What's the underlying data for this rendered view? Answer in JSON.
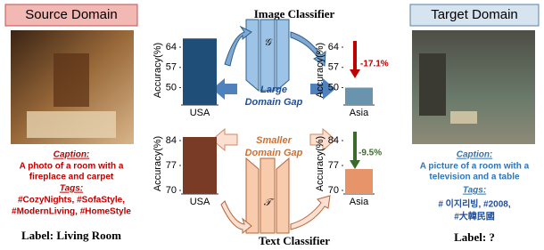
{
  "source": {
    "header": "Source Domain",
    "caption_label": "Caption:",
    "caption": [
      "A photo of a room with a",
      "fireplace and carpet"
    ],
    "tags_label": "Tags:",
    "tags": [
      "#CozyNights, #SofaStyle,",
      "#ModernLiving, #HomeStyle"
    ],
    "label": "Label: Living Room"
  },
  "target": {
    "header": "Target Domain",
    "caption_label": "Caption:",
    "caption": [
      "A picture of a room with a",
      "television and a table"
    ],
    "tags_label": "Tags:",
    "tags": [
      "# 이지리빙, #2008,",
      "#大韓民國"
    ],
    "label": "Label: ?"
  },
  "image_classifier": {
    "title": "Image Classifier",
    "symbol": "𝒢"
  },
  "text_classifier": {
    "title": "Text Classifier",
    "symbol": "𝒯"
  },
  "large_gap": [
    "Large",
    "Domain Gap"
  ],
  "small_gap": [
    "Smaller",
    "Domain Gap"
  ],
  "chart_data": [
    {
      "type": "bar",
      "ylabel": "Accuracy(%)",
      "categories": [
        "USA"
      ],
      "values": [
        67
      ],
      "color": "#1f4e79",
      "ylim": [
        44,
        68
      ],
      "yticks": [
        50,
        57,
        64
      ]
    },
    {
      "type": "bar",
      "ylabel": "Accuracy(%)",
      "categories": [
        "Asia"
      ],
      "values": [
        50
      ],
      "color": "#6a93ad",
      "ylim": [
        44,
        68
      ],
      "yticks": [
        50,
        57,
        64
      ],
      "annotation": "-17.1%"
    },
    {
      "type": "bar",
      "ylabel": "Accuracy(%)",
      "categories": [
        "USA"
      ],
      "values": [
        85
      ],
      "color": "#7a3b26",
      "ylim": [
        69,
        86
      ],
      "yticks": [
        70,
        77,
        84
      ]
    },
    {
      "type": "bar",
      "ylabel": "Accuracy(%)",
      "categories": [
        "Asia"
      ],
      "values": [
        76
      ],
      "color": "#e8946a",
      "ylim": [
        69,
        86
      ],
      "yticks": [
        70,
        77,
        84
      ],
      "annotation": "-9.5%"
    }
  ]
}
